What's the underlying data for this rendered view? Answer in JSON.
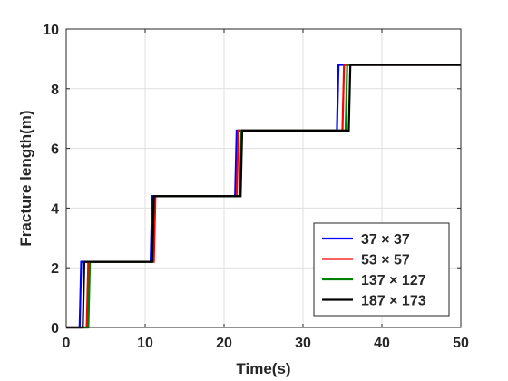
{
  "chart_data": {
    "type": "line",
    "title": "",
    "xlabel": "Time(s)",
    "ylabel": "Fracture length(m)",
    "xlim": [
      0,
      50
    ],
    "ylim": [
      0,
      10
    ],
    "xticks": [
      "0",
      "10",
      "20",
      "30",
      "40",
      "50"
    ],
    "yticks": [
      "0",
      "2",
      "4",
      "6",
      "8",
      "10"
    ],
    "grid": true,
    "legend_position": "bottom-right",
    "series": [
      {
        "name": "37 × 37",
        "color": "#0000ff",
        "x": [
          0,
          1.7,
          1.9,
          10.7,
          10.9,
          21.4,
          21.6,
          34.3,
          34.5,
          50
        ],
        "y": [
          0,
          0,
          2.2,
          2.2,
          4.4,
          4.4,
          6.6,
          6.6,
          8.8,
          8.8
        ]
      },
      {
        "name": "53 × 57",
        "color": "#ff0000",
        "x": [
          0,
          2.6,
          2.8,
          11.1,
          11.3,
          21.6,
          21.8,
          35.0,
          35.2,
          50
        ],
        "y": [
          0,
          0,
          2.2,
          2.2,
          4.4,
          4.4,
          6.6,
          6.6,
          8.8,
          8.8
        ]
      },
      {
        "name": "137 × 127",
        "color": "#008000",
        "x": [
          0,
          2.8,
          3.0,
          10.9,
          11.1,
          22.0,
          22.2,
          35.4,
          35.6,
          50
        ],
        "y": [
          0,
          0,
          2.2,
          2.2,
          4.4,
          4.4,
          6.6,
          6.6,
          8.8,
          8.8
        ]
      },
      {
        "name": "187 × 173",
        "color": "#000000",
        "x": [
          0,
          2.1,
          2.3,
          10.9,
          11.1,
          22.1,
          22.3,
          35.8,
          36.0,
          50
        ],
        "y": [
          0,
          0,
          2.2,
          2.2,
          4.4,
          4.4,
          6.6,
          6.6,
          8.8,
          8.8
        ]
      }
    ]
  }
}
